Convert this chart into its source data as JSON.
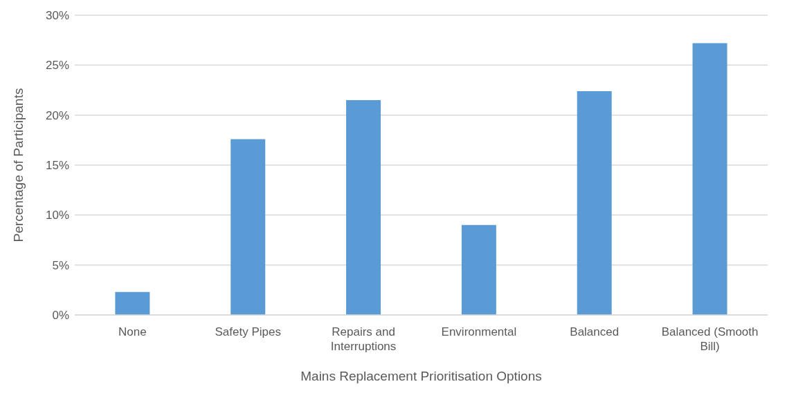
{
  "chart_data": {
    "type": "bar",
    "xlabel": "Mains Replacement  Prioritisation Options",
    "ylabel": "Percentage of Participants",
    "categories": [
      "None",
      "Safety Pipes",
      "Repairs and Interruptions",
      "Environmental",
      "Balanced",
      "Balanced (Smooth Bill)"
    ],
    "values": [
      2.3,
      17.6,
      21.5,
      9.0,
      22.4,
      27.2
    ],
    "color": "#5b9bd5",
    "ylim": [
      0,
      30
    ],
    "yticks": [
      {
        "value": 0,
        "label": "0%"
      },
      {
        "value": 5,
        "label": "5%"
      },
      {
        "value": 10,
        "label": "10%"
      },
      {
        "value": 15,
        "label": "15%"
      },
      {
        "value": 20,
        "label": "20%"
      },
      {
        "value": 25,
        "label": "25%"
      },
      {
        "value": 30,
        "label": "30%"
      }
    ],
    "grid": "y",
    "legend": false
  }
}
